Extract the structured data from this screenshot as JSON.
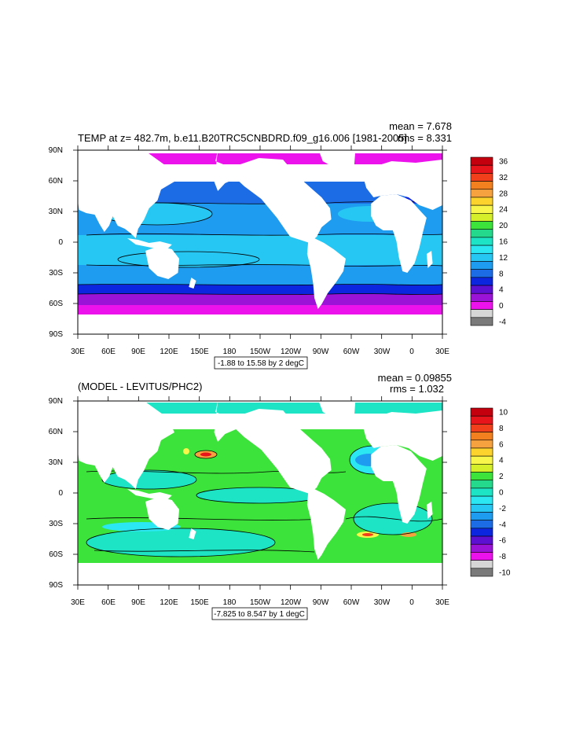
{
  "panels": [
    {
      "id": "top",
      "title": "TEMP at z= 482.7m, b.e11.B20TRC5CNBDRD.f09_g16.006 [1981-2005]",
      "mean_label": "mean = 7.678",
      "rms_label": "rms = 8.331",
      "contour_info": "-1.88 to 15.58 by 2 degC",
      "colorbar": {
        "labels": [
          "36",
          "32",
          "28",
          "24",
          "20",
          "16",
          "12",
          "8",
          "4",
          "0",
          "-4"
        ],
        "colors": [
          "#c4000e",
          "#e8141c",
          "#f03f1a",
          "#f3801e",
          "#f6a33f",
          "#fcd22c",
          "#f8f64a",
          "#d5f02b",
          "#3ce33a",
          "#24d98b",
          "#1de4c5",
          "#2be7f1",
          "#27c7f3",
          "#1e9cef",
          "#1c6ce6",
          "#0c26e0",
          "#5b10d2",
          "#9a13d6",
          "#ec12ec",
          "#d6d6d6",
          "#7a7a7a"
        ]
      }
    },
    {
      "id": "bottom",
      "title": "(MODEL - LEVITUS/PHC2)",
      "mean_label": "mean = 0.09855",
      "rms_label": "rms = 1.032",
      "contour_info": "-7.825 to 8.547 by 1 degC",
      "colorbar": {
        "labels": [
          "10",
          "8",
          "6",
          "4",
          "2",
          "0",
          "-2",
          "-4",
          "-6",
          "-8",
          "-10"
        ],
        "colors": [
          "#c4000e",
          "#e8141c",
          "#f03f1a",
          "#f3801e",
          "#f6a33f",
          "#fcd22c",
          "#f8f64a",
          "#d5f02b",
          "#3ce33a",
          "#24d98b",
          "#1de4c5",
          "#2be7f1",
          "#27c7f3",
          "#1e9cef",
          "#1c6ce6",
          "#0c26e0",
          "#5b10d2",
          "#9a13d6",
          "#ec12ec",
          "#d6d6d6",
          "#7a7a7a"
        ]
      }
    }
  ],
  "lat_labels": [
    "90N",
    "60N",
    "30N",
    "0",
    "30S",
    "60S",
    "90S"
  ],
  "lon_labels": [
    "30E",
    "60E",
    "90E",
    "120E",
    "150E",
    "180",
    "150W",
    "120W",
    "90W",
    "60W",
    "30W",
    "0",
    "30E"
  ]
}
